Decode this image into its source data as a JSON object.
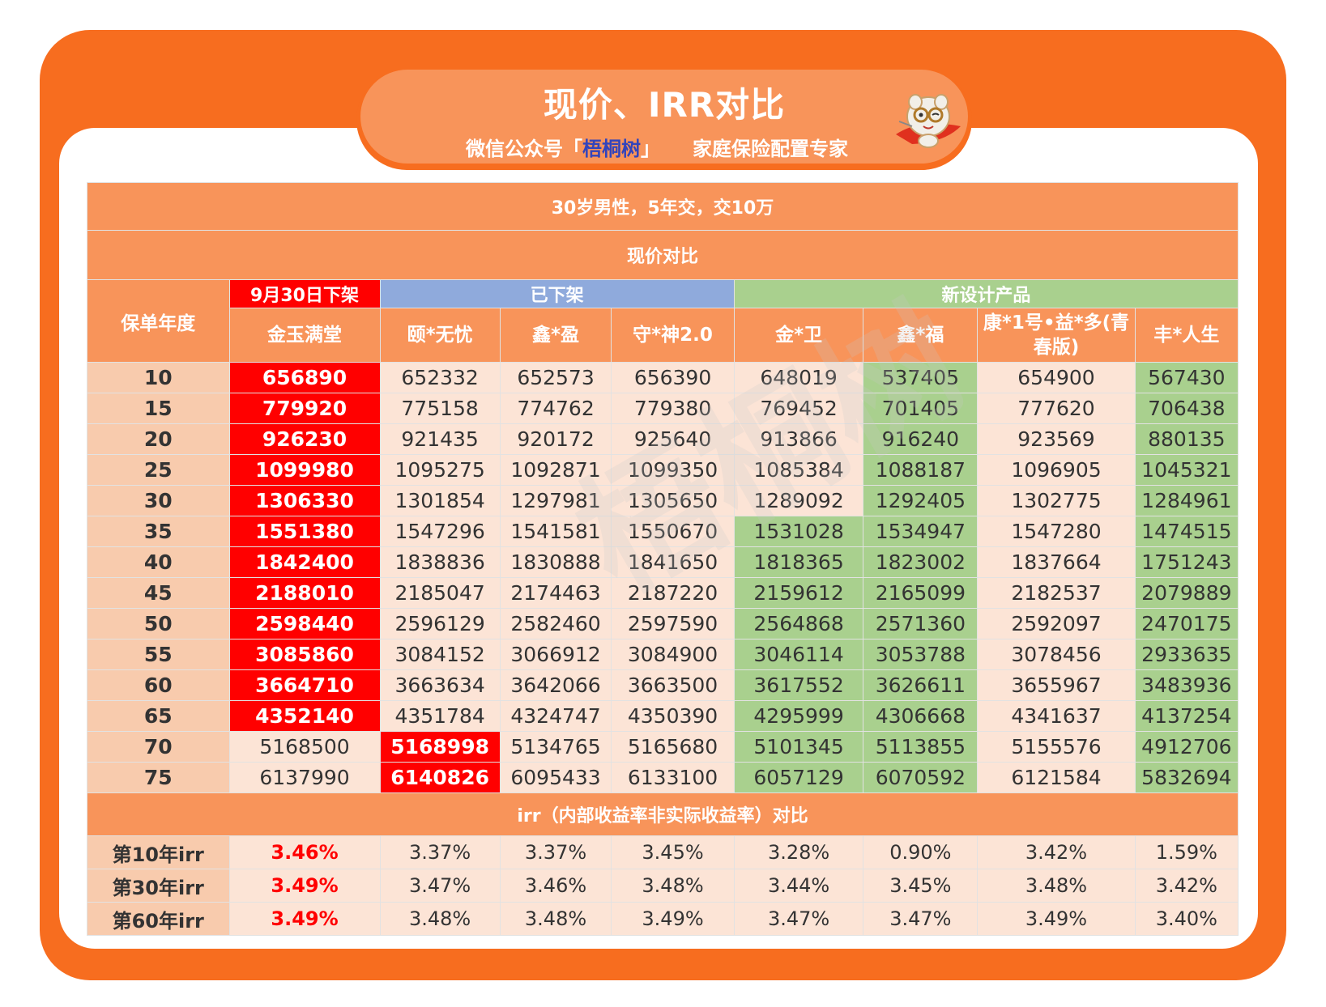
{
  "banner": {
    "title": "现价、IRR对比",
    "subtitle_prefix": "微信公众号「",
    "brand": "梧桐树",
    "subtitle_suffix": "」",
    "slogan": "家庭保险配置专家"
  },
  "watermark": "梧桐树",
  "table": {
    "scenario": "30岁男性，5年交，交10万",
    "section_cash": "现价对比",
    "section_irr": "irr（内部收益率非实际收益率）对比",
    "year_header": "保单年度",
    "groups": {
      "delisting": "9月30日下架",
      "delisted": "已下架",
      "new": "新设计产品"
    },
    "products": [
      "金玉满堂",
      "颐*无忧",
      "鑫*盈",
      "守*神2.0",
      "金*卫",
      "鑫*福",
      "康*1号•益*多(青春版)",
      "丰*人生"
    ],
    "rows": [
      {
        "year": "10",
        "values": [
          "656890",
          "652332",
          "652573",
          "656390",
          "648019",
          "537405",
          "654900",
          "567430"
        ]
      },
      {
        "year": "15",
        "values": [
          "779920",
          "775158",
          "774762",
          "779380",
          "769452",
          "701405",
          "777620",
          "706438"
        ]
      },
      {
        "year": "20",
        "values": [
          "926230",
          "921435",
          "920172",
          "925640",
          "913866",
          "916240",
          "923569",
          "880135"
        ]
      },
      {
        "year": "25",
        "values": [
          "1099980",
          "1095275",
          "1092871",
          "1099350",
          "1085384",
          "1088187",
          "1096905",
          "1045321"
        ]
      },
      {
        "year": "30",
        "values": [
          "1306330",
          "1301854",
          "1297981",
          "1305650",
          "1289092",
          "1292405",
          "1302775",
          "1284961"
        ]
      },
      {
        "year": "35",
        "values": [
          "1551380",
          "1547296",
          "1541581",
          "1550670",
          "1531028",
          "1534947",
          "1547280",
          "1474515"
        ]
      },
      {
        "year": "40",
        "values": [
          "1842400",
          "1838836",
          "1830888",
          "1841650",
          "1818365",
          "1823002",
          "1837664",
          "1751243"
        ]
      },
      {
        "year": "45",
        "values": [
          "2188010",
          "2185047",
          "2174463",
          "2187220",
          "2159612",
          "2165099",
          "2182537",
          "2079889"
        ]
      },
      {
        "year": "50",
        "values": [
          "2598440",
          "2596129",
          "2582460",
          "2597590",
          "2564868",
          "2571360",
          "2592097",
          "2470175"
        ]
      },
      {
        "year": "55",
        "values": [
          "3085860",
          "3084152",
          "3066912",
          "3084900",
          "3046114",
          "3053788",
          "3078456",
          "2933635"
        ]
      },
      {
        "year": "60",
        "values": [
          "3664710",
          "3663634",
          "3642066",
          "3663500",
          "3617552",
          "3626611",
          "3655967",
          "3483936"
        ]
      },
      {
        "year": "65",
        "values": [
          "4352140",
          "4351784",
          "4324747",
          "4350390",
          "4295999",
          "4306668",
          "4341637",
          "4137254"
        ]
      },
      {
        "year": "70",
        "values": [
          "5168500",
          "5168998",
          "5134765",
          "5165680",
          "5101345",
          "5113855",
          "5155576",
          "4912706"
        ]
      },
      {
        "year": "75",
        "values": [
          "6137990",
          "6140826",
          "6095433",
          "6133100",
          "6057129",
          "6070592",
          "6121584",
          "5832694"
        ]
      }
    ],
    "irr_rows": [
      {
        "label": "第10年irr",
        "values": [
          "3.46%",
          "3.37%",
          "3.37%",
          "3.45%",
          "3.28%",
          "0.90%",
          "3.42%",
          "1.59%"
        ]
      },
      {
        "label": "第30年irr",
        "values": [
          "3.49%",
          "3.47%",
          "3.46%",
          "3.48%",
          "3.44%",
          "3.45%",
          "3.48%",
          "3.42%"
        ]
      },
      {
        "label": "第60年irr",
        "values": [
          "3.49%",
          "3.48%",
          "3.48%",
          "3.49%",
          "3.47%",
          "3.47%",
          "3.49%",
          "3.40%"
        ]
      }
    ]
  }
}
